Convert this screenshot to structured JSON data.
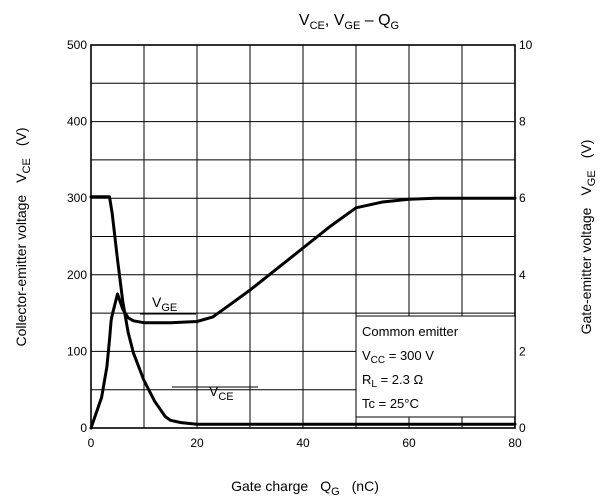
{
  "chart_data": {
    "type": "line",
    "title": {
      "a": "V",
      "a_sub": "CE",
      "b": ", V",
      "b_sub": "GE",
      "c": " – Q",
      "c_sub": "G"
    },
    "xlabel": {
      "main": "Gate charge",
      "sym": "Q",
      "sym_sub": "G",
      "unit": "(nC)"
    },
    "ylabel_left": {
      "main": "Collector-emitter voltage",
      "sym": "V",
      "sym_sub": "CE",
      "unit": "(V)"
    },
    "ylabel_right": {
      "main": "Gate-emitter voltage",
      "sym": "V",
      "sym_sub": "GE",
      "unit": "(V)"
    },
    "xlim": [
      0,
      80
    ],
    "ylim_left": [
      0,
      500
    ],
    "ylim_right": [
      0,
      10
    ],
    "xticks": [
      "0",
      "20",
      "40",
      "60",
      "80"
    ],
    "yticks_left": [
      "0",
      "100",
      "200",
      "300",
      "400",
      "500"
    ],
    "yticks_right": [
      "0",
      "2",
      "4",
      "6",
      "8",
      "10"
    ],
    "grid": true,
    "series": [
      {
        "label_main": "V",
        "label_sub": "CE",
        "axis": "left",
        "x": [
          0,
          3.5,
          4,
          5,
          6,
          7,
          8,
          10,
          12,
          14,
          15,
          17,
          20,
          30,
          40,
          50,
          60,
          70,
          80
        ],
        "y": [
          302,
          302,
          280,
          220,
          165,
          125,
          98,
          62,
          35,
          15,
          10,
          7,
          5,
          5,
          5,
          5,
          5,
          5,
          5
        ]
      },
      {
        "label_main": "V",
        "label_sub": "GE",
        "axis": "right",
        "x": [
          0,
          2,
          3,
          3.5,
          3.8,
          4,
          5,
          6,
          7,
          8,
          10,
          15,
          20,
          23,
          25,
          30,
          35,
          40,
          45,
          50,
          55,
          60,
          65,
          70,
          75,
          80
        ],
        "y": [
          0,
          0.8,
          1.6,
          2.3,
          2.8,
          2.95,
          3.5,
          3.1,
          2.88,
          2.8,
          2.75,
          2.75,
          2.78,
          2.9,
          3.1,
          3.6,
          4.15,
          4.7,
          5.25,
          5.75,
          5.9,
          5.97,
          6.0,
          6.0,
          6.0,
          6.0
        ]
      }
    ],
    "annotation": {
      "line1": "Common emitter",
      "line2_a": "V",
      "line2_sub": "CC",
      "line2_b": " = 300 V",
      "line3_a": "R",
      "line3_sub": "L",
      "line3_b": " = 2.3 Ω",
      "line4": "Tc = 25°C"
    }
  }
}
